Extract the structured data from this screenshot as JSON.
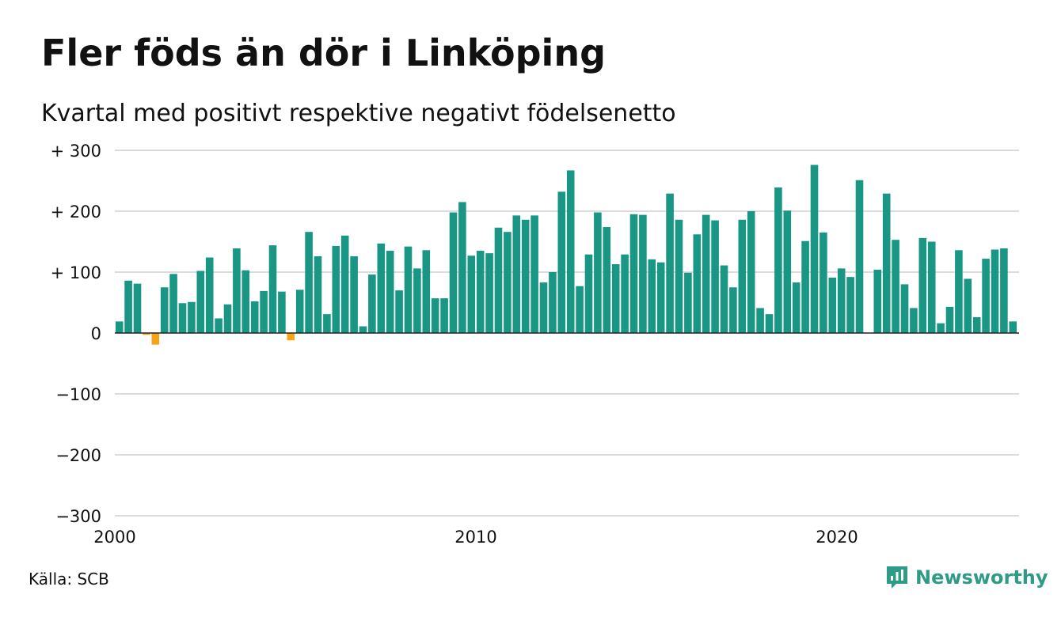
{
  "title": "Fler föds än dör i Linköping",
  "subtitle": "Kvartal med positivt respektive negativt födelsenetto",
  "source": "Källa: SCB",
  "brand": {
    "name": "Newsworthy",
    "icon": "newsworthy-logo-icon"
  },
  "colors": {
    "positive": "#1a9784",
    "negative": "#f5a31a",
    "grid": "#dcdcdc",
    "brand": "#2e9b86"
  },
  "chart_data": {
    "type": "bar",
    "title": "Fler föds än dör i Linköping",
    "subtitle": "Kvartal med positivt respektive negativt födelsenetto",
    "xlabel": "",
    "ylabel": "",
    "x_start": 2000,
    "periods_per_year": 4,
    "x_ticks": [
      {
        "value": 2000,
        "label": "2000"
      },
      {
        "value": 2010,
        "label": "2010"
      },
      {
        "value": 2020,
        "label": "2020"
      }
    ],
    "ylim": [
      -300,
      300
    ],
    "y_ticks": [
      {
        "value": 300,
        "label": "+ 300"
      },
      {
        "value": 200,
        "label": "+ 200"
      },
      {
        "value": 100,
        "label": "+ 100"
      },
      {
        "value": 0,
        "label": "0"
      },
      {
        "value": -100,
        "label": "−100"
      },
      {
        "value": -200,
        "label": "−200"
      },
      {
        "value": -300,
        "label": "−300"
      }
    ],
    "grid": true,
    "values": [
      19,
      86,
      81,
      -3,
      -19,
      75,
      97,
      49,
      51,
      102,
      124,
      24,
      47,
      139,
      103,
      52,
      69,
      144,
      68,
      -12,
      71,
      166,
      126,
      31,
      143,
      160,
      126,
      11,
      96,
      147,
      135,
      70,
      142,
      106,
      136,
      57,
      57,
      198,
      215,
      127,
      135,
      131,
      173,
      166,
      193,
      186,
      193,
      83,
      100,
      232,
      267,
      77,
      129,
      198,
      174,
      113,
      129,
      195,
      194,
      121,
      116,
      229,
      186,
      99,
      162,
      194,
      185,
      111,
      75,
      186,
      200,
      41,
      31,
      239,
      201,
      83,
      151,
      276,
      165,
      91,
      106,
      92,
      251,
      0,
      104,
      229,
      153,
      80,
      41,
      156,
      150,
      16,
      43,
      136,
      89,
      26,
      122,
      137,
      139,
      19
    ]
  }
}
